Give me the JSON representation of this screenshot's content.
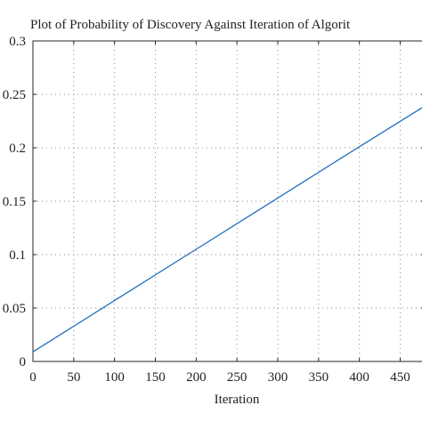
{
  "chart_data": {
    "type": "line",
    "title": "Plot of Probability of Discovery Against Iteration of Algorit",
    "xlabel": "Iteration",
    "ylabel": "",
    "xlim": [
      0,
      480
    ],
    "ylim": [
      0,
      0.3
    ],
    "x_ticks": [
      0,
      50,
      100,
      150,
      200,
      250,
      300,
      350,
      400,
      450
    ],
    "x_tick_labels": [
      "0",
      "50",
      "100",
      "150",
      "200",
      "250",
      "300",
      "350",
      "400",
      "450"
    ],
    "y_ticks": [
      0,
      0.05,
      0.1,
      0.15,
      0.2,
      0.25,
      0.3
    ],
    "y_tick_labels": [
      "0",
      "0.05",
      "0.1",
      "0.15",
      "0.2",
      "0.25",
      "0.3"
    ],
    "grid": true,
    "series": [
      {
        "color": "#1f6fbf",
        "x": [
          0,
          100,
          200,
          300,
          400,
          480
        ],
        "y": [
          0.009,
          0.057,
          0.105,
          0.153,
          0.201,
          0.239
        ]
      }
    ]
  }
}
